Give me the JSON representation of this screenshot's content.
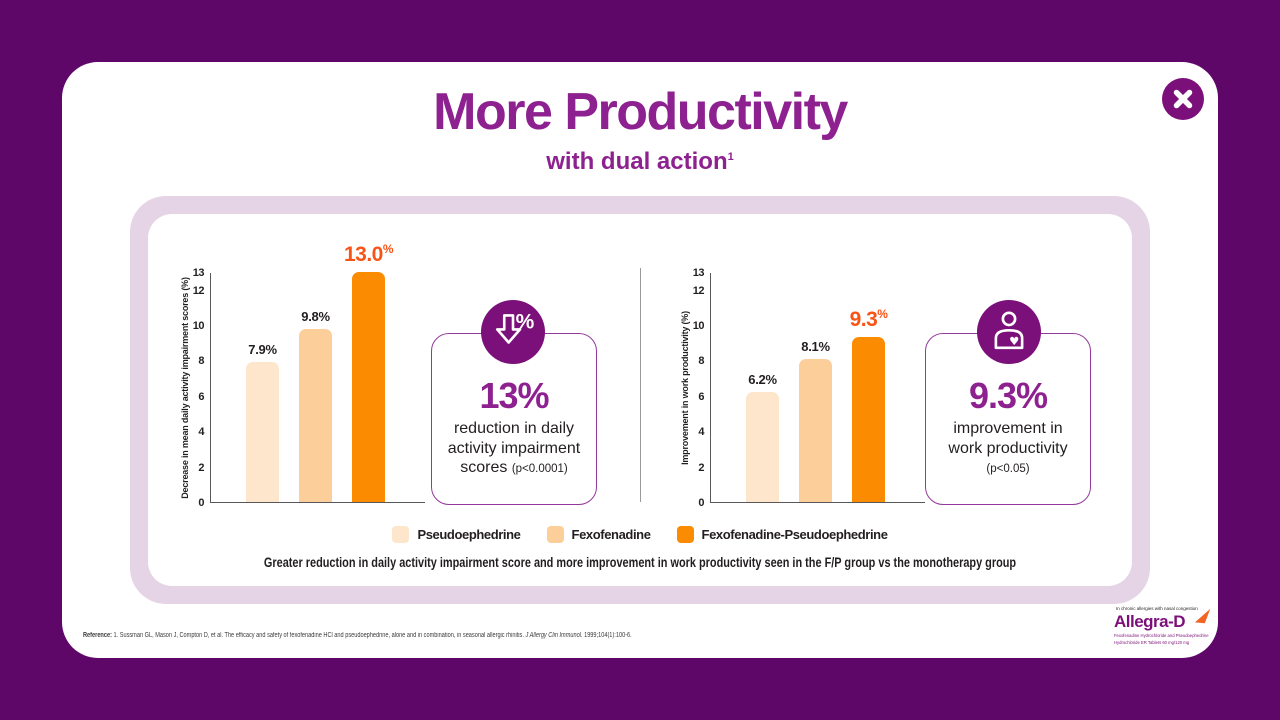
{
  "colors": {
    "background": "#5E0769",
    "brand_purple": "#8E2190",
    "deep_purple": "#7C107A",
    "panel_lavender": "#E5D3E6",
    "highlight_orange": "#F95416",
    "bar_light": "#FDE6CC",
    "bar_medium": "#FCCE9A",
    "bar_strong": "#FB8B00"
  },
  "header": {
    "title": "More Productivity",
    "subtitle": "with dual action",
    "subtitle_sup": "1"
  },
  "chart_data": [
    {
      "type": "bar",
      "categories": [
        "Pseudoephedrine",
        "Fexofenadine",
        "Fexofenadine-Pseudoephedrine"
      ],
      "values": [
        7.9,
        9.8,
        13.0
      ],
      "value_labels": [
        "7.9%",
        "9.8%",
        "13.0%"
      ],
      "highlight_index": 2,
      "ylabel": "Decrease in mean daily activity impairment scores (%)",
      "yticks": [
        0,
        2,
        4,
        6,
        8,
        10,
        12,
        13
      ],
      "ylim": [
        0,
        13
      ],
      "bar_colors": [
        "#FDE6CC",
        "#FCCE9A",
        "#FB8B00"
      ],
      "grid": false,
      "legend_position": "bottom"
    },
    {
      "type": "bar",
      "categories": [
        "Pseudoephedrine",
        "Fexofenadine",
        "Fexofenadine-Pseudoephedrine"
      ],
      "values": [
        6.2,
        8.1,
        9.3
      ],
      "value_labels": [
        "6.2%",
        "8.1%",
        "9.3%"
      ],
      "highlight_index": 2,
      "ylabel": "Improvement in work productivity (%)",
      "yticks": [
        0,
        2,
        4,
        6,
        8,
        10,
        12,
        13
      ],
      "ylim": [
        0,
        13
      ],
      "bar_colors": [
        "#FDE6CC",
        "#FCCE9A",
        "#FB8B00"
      ],
      "grid": false,
      "legend_position": "bottom"
    }
  ],
  "legend": {
    "entries": [
      {
        "label": "Pseudoephedrine",
        "color": "#FDE6CC"
      },
      {
        "label": "Fexofenadine",
        "color": "#FCCE9A"
      },
      {
        "label": "Fexofenadine-Pseudoephedrine",
        "color": "#FB8B00"
      }
    ]
  },
  "callouts": [
    {
      "icon": "percent-down-icon",
      "headline": "13%",
      "body": "reduction in daily activity impairment scores",
      "pvalue": "(p<0.0001)"
    },
    {
      "icon": "person-heart-icon",
      "headline": "9.3%",
      "body": "improvement in work productivity",
      "pvalue": "(p<0.05)"
    }
  ],
  "caption": "Greater reduction in daily activity impairment score and more improvement in work productivity seen in the F/P group vs the monotherapy group",
  "footer": {
    "reference_label": "Reference:",
    "reference_text": " 1. Sussman GL, Mason J, Compton D, et al. The efficacy and safety of fexofenadine HCl and pseudoephedrine, alone and in combination, in seasonal allergic rhinitis. ",
    "reference_journal": "J Allergy Clin Immunol.",
    "reference_tail": " 1999;104(1):100-6."
  },
  "logo": {
    "tagline": "In chronic allergies with nasal congestion",
    "brand": "Allegra-D",
    "sub_line1": "Fexofenadine Hydrochloride and Pseudoephedrine",
    "sub_line2": "Hydrochloride ER Tablets 60 mg/120 mg"
  }
}
